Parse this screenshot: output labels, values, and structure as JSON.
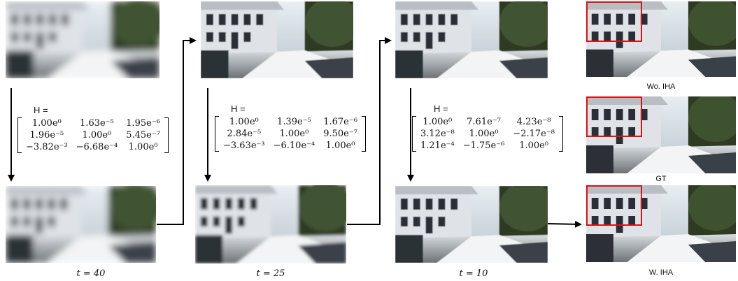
{
  "h_label": "H =",
  "matrices": [
    {
      "rows": [
        [
          "1.00e⁰",
          "1.63e⁻⁵",
          "1.95e⁻⁶"
        ],
        [
          "1.96e⁻⁵",
          "1.00e⁰",
          "5.45e⁻⁷"
        ],
        [
          "−3.82e⁻³",
          "−6.68e⁻⁴",
          "1.00e⁰"
        ]
      ]
    },
    {
      "rows": [
        [
          "1.00e⁰",
          "1.39e⁻⁵",
          "1.67e⁻⁶"
        ],
        [
          "2.84e⁻⁵",
          "1.00e⁰",
          "9.50e⁻⁷"
        ],
        [
          "−3.63e⁻³",
          "−6.10e⁻⁴",
          "1.00e⁰"
        ]
      ]
    },
    {
      "rows": [
        [
          "1.00e⁰",
          "7.61e⁻⁷",
          "4.23e⁻⁸"
        ],
        [
          "3.12e⁻⁸",
          "1.00e⁰",
          "−2.17e⁻⁸"
        ],
        [
          "1.21e⁻⁴",
          "−1.75e⁻⁶",
          "1.00e⁰"
        ]
      ]
    }
  ],
  "timesteps": [
    "t = 40",
    "t = 25",
    "t = 10"
  ],
  "captions": {
    "wo": "Wo. IHA",
    "gt": "GT",
    "w": "W. IHA"
  },
  "colors": {
    "highlight": "#d11111",
    "arrow": "#000000"
  }
}
